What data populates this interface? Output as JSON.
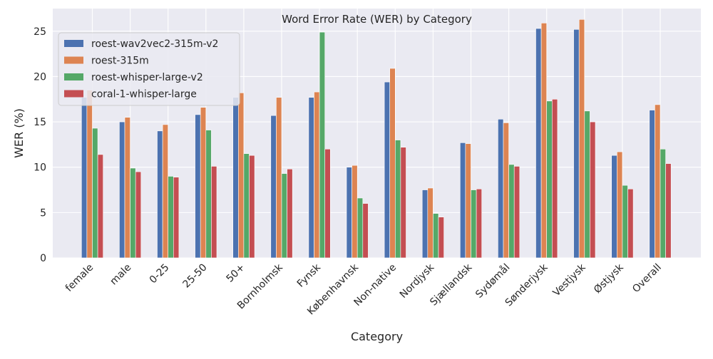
{
  "chart_data": {
    "type": "bar",
    "title": "Word Error Rate (WER) by Category",
    "xlabel": "Category",
    "ylabel": "WER (%)",
    "ylim": [
      0,
      27.5
    ],
    "yticks": [
      0,
      5,
      10,
      15,
      20,
      25
    ],
    "grid": true,
    "legend_position": "top-left",
    "categories": [
      "female",
      "male",
      "0-25",
      "25-50",
      "50+",
      "Bornholmsk",
      "Fynsk",
      "Københavnsk",
      "Non-native",
      "Nordjysk",
      "Sjællandsk",
      "Sydømål",
      "Sønderjysk",
      "Vestjysk",
      "Østjysk",
      "Overall"
    ],
    "series": [
      {
        "name": "roest-wav2vec2-315m-v2",
        "color": "#4c72b0",
        "values": [
          17.7,
          15.0,
          14.0,
          15.8,
          17.7,
          15.7,
          17.7,
          10.0,
          19.4,
          7.5,
          12.7,
          15.3,
          25.3,
          25.2,
          11.3,
          16.3
        ]
      },
      {
        "name": "roest-315m",
        "color": "#dd8452",
        "values": [
          18.5,
          15.5,
          14.7,
          16.6,
          18.2,
          17.7,
          18.3,
          10.2,
          20.9,
          7.7,
          12.6,
          14.9,
          25.9,
          26.3,
          11.7,
          16.9
        ]
      },
      {
        "name": "roest-whisper-large-v2",
        "color": "#55a868",
        "values": [
          14.3,
          9.9,
          9.0,
          14.1,
          11.5,
          9.3,
          24.9,
          6.6,
          13.0,
          4.9,
          7.5,
          10.3,
          17.3,
          16.2,
          8.0,
          12.0
        ]
      },
      {
        "name": "coral-1-whisper-large",
        "color": "#c44e52",
        "values": [
          11.4,
          9.5,
          8.9,
          10.1,
          11.3,
          9.8,
          12.0,
          6.0,
          12.2,
          4.5,
          7.6,
          10.1,
          17.5,
          15.0,
          7.6,
          10.4
        ]
      }
    ]
  },
  "style": {
    "plot_background": "#eaeaf2",
    "grid_color": "#ffffff"
  }
}
